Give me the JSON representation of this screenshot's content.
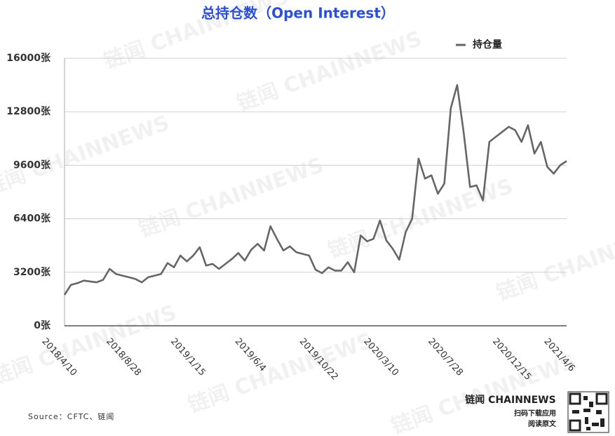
{
  "chart_data": {
    "type": "line",
    "title": "总持仓数（Open Interest）",
    "categories": [
      "2018/4/10",
      null,
      null,
      null,
      null,
      null,
      null,
      null,
      null,
      null,
      "2018/8/28",
      null,
      null,
      null,
      null,
      null,
      null,
      null,
      null,
      null,
      "2019/1/15",
      null,
      null,
      null,
      null,
      null,
      null,
      null,
      null,
      null,
      "2019/6/4",
      null,
      null,
      null,
      null,
      null,
      null,
      null,
      null,
      null,
      "2019/10/22",
      null,
      null,
      null,
      null,
      null,
      null,
      null,
      null,
      null,
      "2020/3/10",
      null,
      null,
      null,
      null,
      null,
      null,
      null,
      null,
      null,
      "2020/7/28",
      null,
      null,
      null,
      null,
      null,
      null,
      null,
      null,
      null,
      "2020/12/15",
      null,
      null,
      null,
      null,
      null,
      null,
      null,
      "2021/4/6"
    ],
    "series": [
      {
        "name": "持仓量",
        "color": "#666666",
        "values": [
          1850,
          2450,
          2550,
          2700,
          2650,
          2600,
          2750,
          3400,
          3100,
          3000,
          2900,
          2800,
          2600,
          2900,
          3000,
          3100,
          3750,
          3500,
          4200,
          3850,
          4200,
          4700,
          3600,
          3700,
          3400,
          3700,
          4000,
          4350,
          3900,
          4550,
          4900,
          4500,
          5950,
          5200,
          4500,
          4750,
          4400,
          4300,
          4200,
          3350,
          3150,
          3500,
          3300,
          3300,
          3800,
          3200,
          5400,
          5050,
          5200,
          6300,
          5100,
          4600,
          3950,
          5600,
          6400,
          10000,
          8800,
          9000,
          7900,
          8500,
          13000,
          14400,
          11600,
          8300,
          8400,
          7500,
          11000,
          11300,
          11600,
          11900,
          11700,
          11000,
          12000,
          10300,
          11000,
          9500,
          9100,
          9600,
          9850
        ]
      }
    ],
    "ylim": [
      0,
      16000
    ],
    "yticks": [
      {
        "value": 0,
        "label": "0张"
      },
      {
        "value": 3200,
        "label": "3200张"
      },
      {
        "value": 6400,
        "label": "6400张"
      },
      {
        "value": 9600,
        "label": "9600张"
      },
      {
        "value": 12800,
        "label": "12800张"
      },
      {
        "value": 16000,
        "label": "16000张"
      }
    ],
    "grid": true,
    "legend": "top-right",
    "source": "Source：CFTC、链闻"
  },
  "watermark": "链闻 CHAINNEWS",
  "brand": {
    "name": "链闻 CHAINNEWS",
    "line1": "扫码下载应用",
    "line2": "阅读原文"
  }
}
